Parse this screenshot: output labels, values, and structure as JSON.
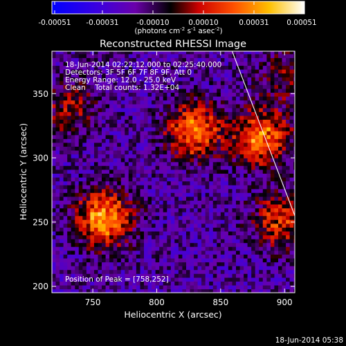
{
  "colorbar": {
    "ticks": [
      "-0.00051",
      "-0.00031",
      "-0.00010",
      "0.00010",
      "0.00031",
      "0.00051"
    ],
    "units_parts": [
      "(photons cm",
      "-2",
      " s",
      "-1",
      " asec",
      "-2",
      ")"
    ]
  },
  "plot": {
    "title": "Reconstructed RHESSI Image",
    "info_lines": [
      "18-Jun-2014 02:22:12.000 to 02:25:40.000",
      "Detectors: 3F 5F 6F 7F 8F 9F, Att 0",
      "Energy Range: 12.0 - 25.0 keV",
      "Clean    Total counts: 1.32E+04"
    ],
    "peak_text": "Position of Peak = [758,252]",
    "timestamp": "18-Jun-2014 05:38"
  },
  "chart_data": {
    "type": "heatmap",
    "title": "Reconstructed RHESSI Image",
    "xlabel": "Heliocentric X (arcsec)",
    "ylabel": "Heliocentric Y (arcsec)",
    "xlim": [
      718,
      908
    ],
    "ylim": [
      195,
      383
    ],
    "xticks": [
      750,
      800,
      850,
      900
    ],
    "yticks": [
      200,
      250,
      300,
      350
    ],
    "color_range": [
      -0.00051,
      0.00051
    ],
    "colormap": [
      "#0000ff",
      "#5a00c8",
      "#780096",
      "#000000",
      "#dc0000",
      "#ff7800",
      "#ffdc00",
      "#ffffff"
    ],
    "sources": [
      {
        "x": 758,
        "y": 252,
        "peak": 0.00051
      },
      {
        "x": 828,
        "y": 320,
        "peak": 0.00046
      },
      {
        "x": 880,
        "y": 315,
        "peak": 0.00045
      },
      {
        "x": 895,
        "y": 250,
        "peak": 0.00033
      },
      {
        "x": 730,
        "y": 338,
        "peak": 0.00022
      },
      {
        "x": 898,
        "y": 362,
        "peak": 0.00018
      }
    ],
    "limb_line": [
      [
        859,
        383
      ],
      [
        908,
        255
      ]
    ],
    "peak_position": [
      758,
      252
    ]
  }
}
